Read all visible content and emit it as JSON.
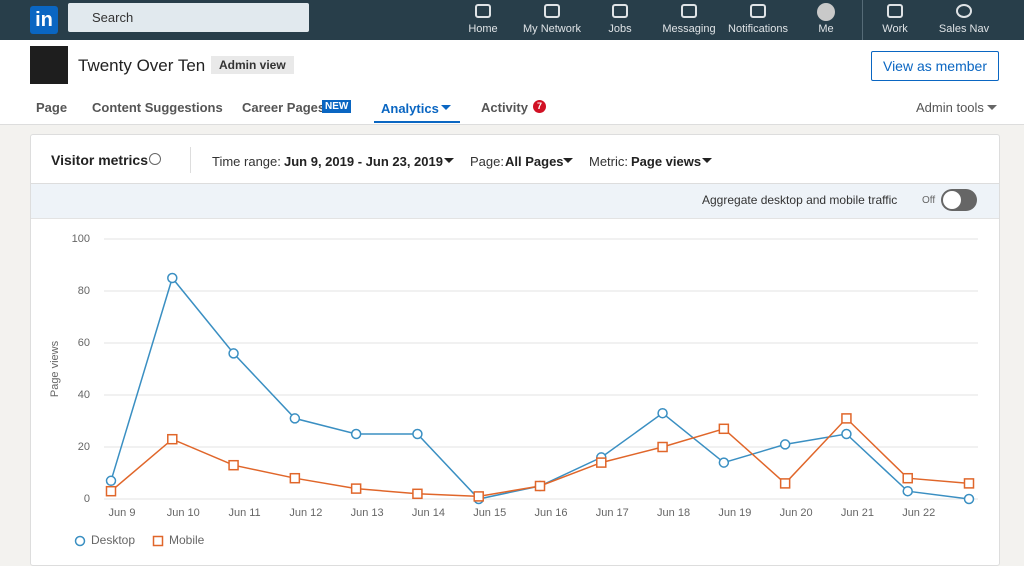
{
  "nav": {
    "logo": "in",
    "search": "Search",
    "items": [
      "Home",
      "My Network",
      "Jobs",
      "Messaging",
      "Notifications",
      "Me",
      "Work",
      "Sales Nav"
    ]
  },
  "company": {
    "name": "Twenty Over Ten",
    "badge": "Admin view",
    "button": "View as member"
  },
  "tabs": {
    "items": [
      "Page",
      "Content Suggestions",
      "Career Pages",
      "Analytics",
      "Activity"
    ],
    "new_badge": "NEW",
    "activity_count": "7",
    "admin_tools": "Admin tools"
  },
  "card": {
    "title": "Visitor metrics",
    "time_label": "Time range:",
    "time_value": "Jun 9, 2019 - Jun 23, 2019",
    "page_label": "Page:",
    "page_value": "All Pages",
    "metric_label": "Metric:",
    "metric_value": "Page views",
    "aggregate": "Aggregate desktop and mobile traffic",
    "toggle": "Off"
  },
  "chart_data": {
    "type": "line",
    "y_label": "Page views",
    "categories": [
      "Jun 9",
      "Jun 10",
      "Jun 11",
      "Jun 12",
      "Jun 13",
      "Jun 14",
      "Jun 15",
      "Jun 16",
      "Jun 17",
      "Jun 18",
      "Jun 19",
      "Jun 20",
      "Jun 21",
      "Jun 22",
      null
    ],
    "series": [
      {
        "name": "Desktop",
        "color": "#3a8fc2",
        "marker": "circle",
        "values": [
          7,
          85,
          56,
          31,
          25,
          25,
          0,
          5,
          16,
          33,
          14,
          21,
          25,
          3,
          0
        ]
      },
      {
        "name": "Mobile",
        "color": "#e0662a",
        "marker": "square",
        "values": [
          3,
          23,
          13,
          8,
          4,
          2,
          1,
          5,
          14,
          20,
          27,
          6,
          31,
          8,
          6
        ]
      }
    ],
    "ylim": [
      0,
      100
    ],
    "yticks": [
      0,
      20,
      40,
      60,
      80,
      100
    ],
    "grid": true
  }
}
